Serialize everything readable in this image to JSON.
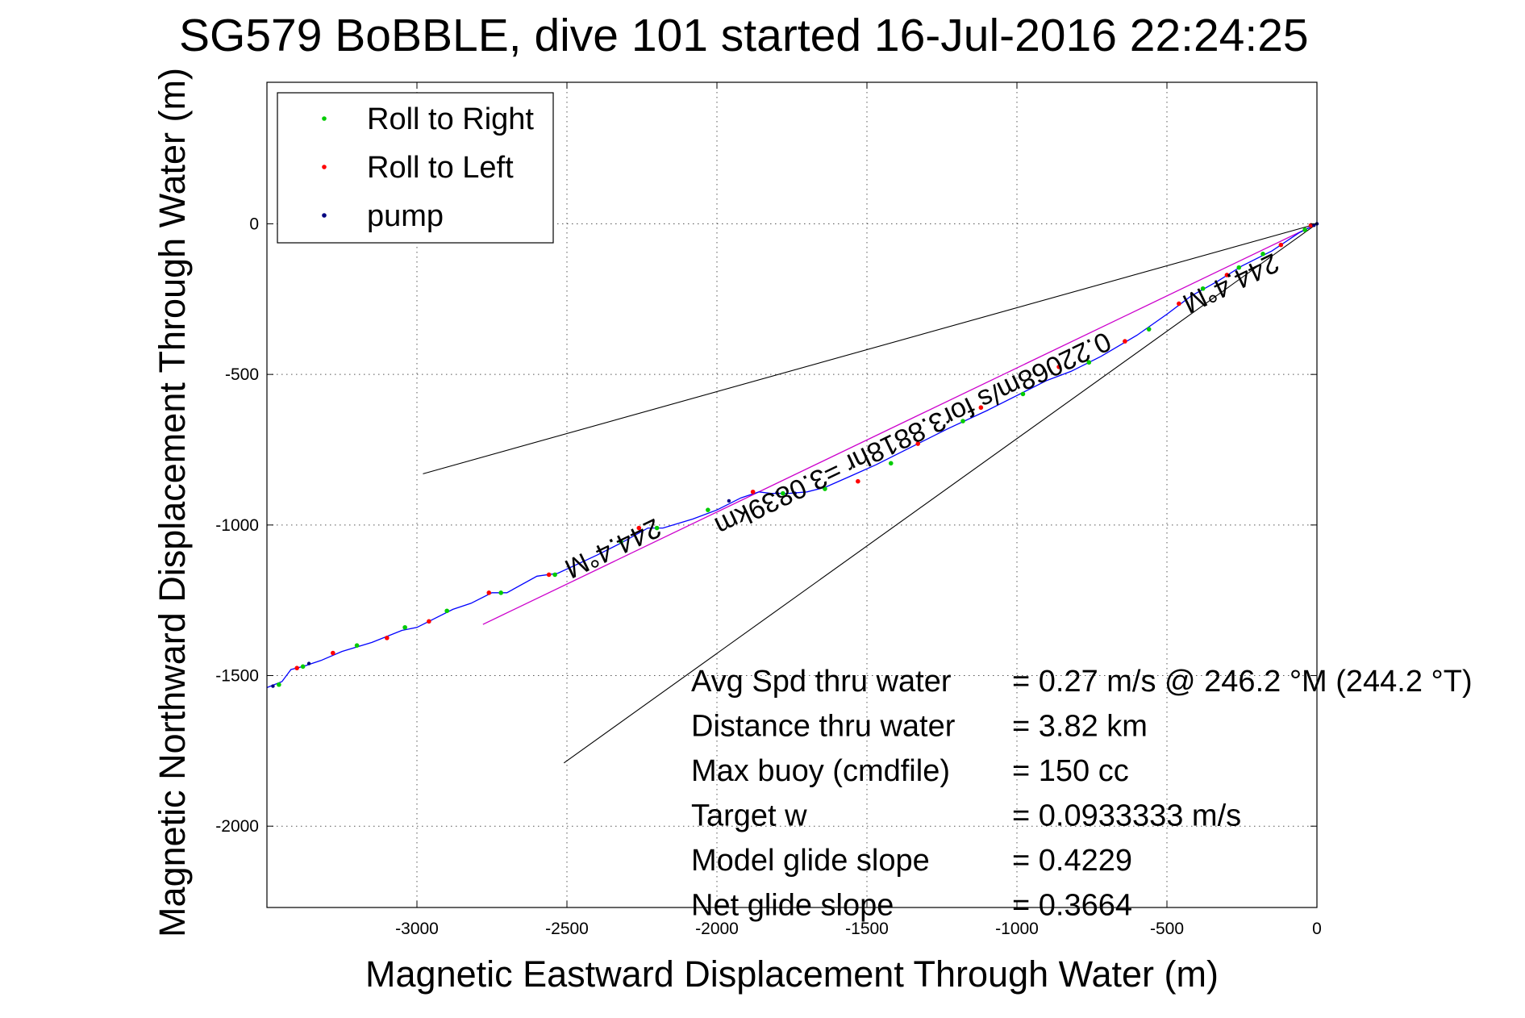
{
  "chart_data": {
    "type": "line",
    "title": "SG579 BoBBLE, dive 101 started 16-Jul-2016 22:24:25",
    "xlabel": "Magnetic Eastward Displacement Through Water (m)",
    "ylabel": "Magnetic Northward Displacement Through Water (m)",
    "xlim": [
      -3500,
      0
    ],
    "ylim": [
      -2270,
      470
    ],
    "xticks": [
      -3000,
      -2500,
      -2000,
      -1500,
      -1000,
      -500,
      0
    ],
    "yticks": [
      0,
      -500,
      -1000,
      -1500,
      -2000
    ],
    "grid": true,
    "legend_position": "top-left",
    "legend": [
      {
        "label": "Roll to Right",
        "color": "#00cc00"
      },
      {
        "label": "Roll to Left",
        "color": "#ff0000"
      },
      {
        "label": "pump",
        "color": "#000080"
      }
    ],
    "track": {
      "color": "#0000ff",
      "x": [
        0,
        -60,
        -150,
        -250,
        -330,
        -420,
        -500,
        -600,
        -720,
        -820,
        -900,
        -1000,
        -1100,
        -1230,
        -1350,
        -1470,
        -1560,
        -1640,
        -1700,
        -1760,
        -1820,
        -1860,
        -1920,
        -2000,
        -2080,
        -2180,
        -2230,
        -2320,
        -2400,
        -2530,
        -2600,
        -2700,
        -2750,
        -2820,
        -2880,
        -3000,
        -3050,
        -3150,
        -3250,
        -3320,
        -3380,
        -3420,
        -3450,
        -3500
      ],
      "y": [
        0,
        -30,
        -90,
        -140,
        -190,
        -240,
        -300,
        -370,
        -440,
        -490,
        -520,
        -570,
        -620,
        -680,
        -740,
        -800,
        -840,
        -875,
        -890,
        -895,
        -895,
        -890,
        -910,
        -950,
        -980,
        -1010,
        -1010,
        -1060,
        -1100,
        -1160,
        -1170,
        -1225,
        -1225,
        -1260,
        -1280,
        -1340,
        -1350,
        -1390,
        -1420,
        -1450,
        -1470,
        -1480,
        -1520,
        -1540
      ]
    },
    "roll_right": {
      "x": [
        -40,
        -180,
        -260,
        -380,
        -560,
        -760,
        -980,
        -1180,
        -1420,
        -1640,
        -1780,
        -2030,
        -2200,
        -2320,
        -2540,
        -2720,
        -2900,
        -3040,
        -3200,
        -3380,
        -3460
      ],
      "y": [
        -20,
        -100,
        -145,
        -215,
        -350,
        -460,
        -565,
        -655,
        -795,
        -880,
        -895,
        -950,
        -1010,
        -1055,
        -1165,
        -1225,
        -1285,
        -1340,
        -1400,
        -1470,
        -1530
      ]
    },
    "roll_left": {
      "x": [
        -20,
        -120,
        -300,
        -460,
        -640,
        -860,
        -1120,
        -1330,
        -1530,
        -1880,
        -2260,
        -2560,
        -2760,
        -2960,
        -3100,
        -3280,
        -3400
      ],
      "y": [
        -5,
        -70,
        -170,
        -265,
        -390,
        -475,
        -610,
        -730,
        -855,
        -890,
        -1010,
        -1165,
        -1225,
        -1320,
        -1375,
        -1425,
        -1475
      ]
    },
    "pump": {
      "x": [
        0,
        -10,
        -1740,
        -1800,
        -1960,
        -3360,
        -3480
      ],
      "y": [
        0,
        -5,
        -895,
        -893,
        -920,
        -1460,
        -1535
      ]
    },
    "heading_line": {
      "color": "#cc00cc",
      "x": [
        0,
        -2780
      ],
      "y": [
        0,
        -1330
      ]
    },
    "cone_lines": [
      {
        "color": "#000000",
        "x": [
          0,
          -2980
        ],
        "y": [
          0,
          -830
        ]
      },
      {
        "color": "#000000",
        "x": [
          0,
          -2510
        ],
        "y": [
          0,
          -1790
        ]
      }
    ],
    "annotations": [
      {
        "text": "244.4°M",
        "x": -300,
        "y": -170
      },
      {
        "text": "0.22068m/s for3.8818hr =3.0839km",
        "x": -1360,
        "y": -670
      },
      {
        "text": "244.4°M",
        "x": -2360,
        "y": -1050
      }
    ],
    "stats": [
      {
        "label": "Avg Spd thru water",
        "value": "=  0.27 m/s @ 246.2 °M (244.2 °T)"
      },
      {
        "label": "Distance thru water",
        "value": "=  3.82 km"
      },
      {
        "label": "Max buoy (cmdfile)",
        "value": "= 150 cc"
      },
      {
        "label": "Target w",
        "value": "= 0.0933333 m/s"
      },
      {
        "label": "Model glide slope",
        "value": "= 0.4229"
      },
      {
        "label": "Net glide slope",
        "value": "= 0.3664"
      }
    ]
  }
}
